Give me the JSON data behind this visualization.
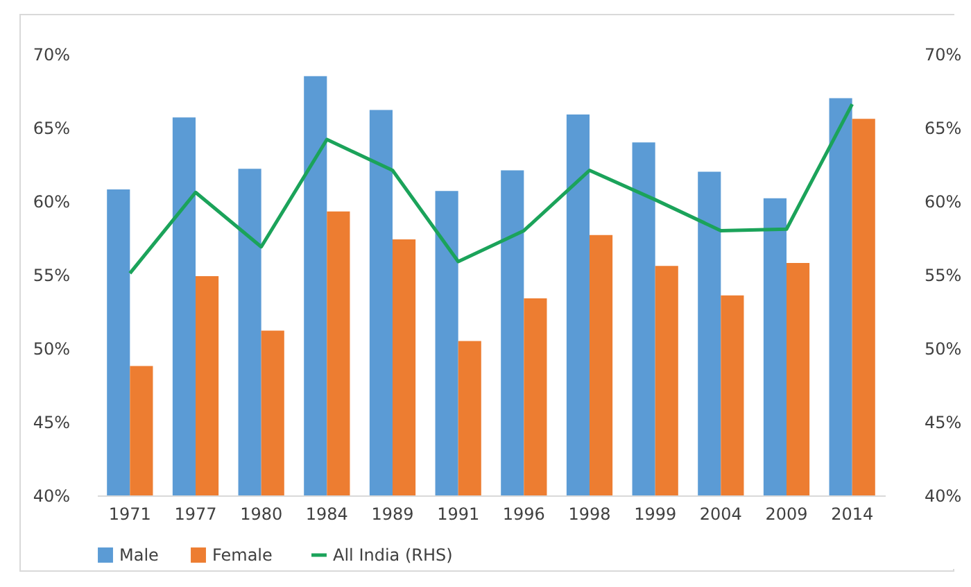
{
  "chart_data": {
    "type": "bar",
    "categories": [
      "1971",
      "1977",
      "1980",
      "1984",
      "1989",
      "1991",
      "1996",
      "1998",
      "1999",
      "2004",
      "2009",
      "2014"
    ],
    "series": [
      {
        "name": "Male",
        "color": "#5b9bd5",
        "values": [
          60.8,
          65.7,
          62.2,
          68.5,
          66.2,
          60.7,
          62.1,
          65.9,
          64.0,
          62.0,
          60.2,
          67.0
        ]
      },
      {
        "name": "Female",
        "color": "#ed7d31",
        "values": [
          48.8,
          54.9,
          51.2,
          59.3,
          57.4,
          50.5,
          53.4,
          57.7,
          55.6,
          53.6,
          55.8,
          65.6
        ]
      },
      {
        "name": "All India (RHS)",
        "type": "line",
        "axis": "y2",
        "color": "#1ba35a",
        "values": [
          55.1,
          60.6,
          56.9,
          64.2,
          62.1,
          55.9,
          58.0,
          62.1,
          60.1,
          58.0,
          58.1,
          66.6
        ]
      }
    ],
    "ylim": [
      40,
      70
    ],
    "yticks": [
      {
        "value": 40,
        "label": "40%"
      },
      {
        "value": 45,
        "label": "45%"
      },
      {
        "value": 50,
        "label": "50%"
      },
      {
        "value": 55,
        "label": "55%"
      },
      {
        "value": 60,
        "label": "60%"
      },
      {
        "value": 65,
        "label": "65%"
      },
      {
        "value": 70,
        "label": "70%"
      }
    ],
    "y2lim": [
      40,
      70
    ],
    "y2ticks": [
      {
        "value": 40,
        "label": "40%"
      },
      {
        "value": 45,
        "label": "45%"
      },
      {
        "value": 50,
        "label": "50%"
      },
      {
        "value": 55,
        "label": "55%"
      },
      {
        "value": 60,
        "label": "60%"
      },
      {
        "value": 65,
        "label": "65%"
      },
      {
        "value": 70,
        "label": "70%"
      }
    ],
    "legend": "bottom"
  }
}
